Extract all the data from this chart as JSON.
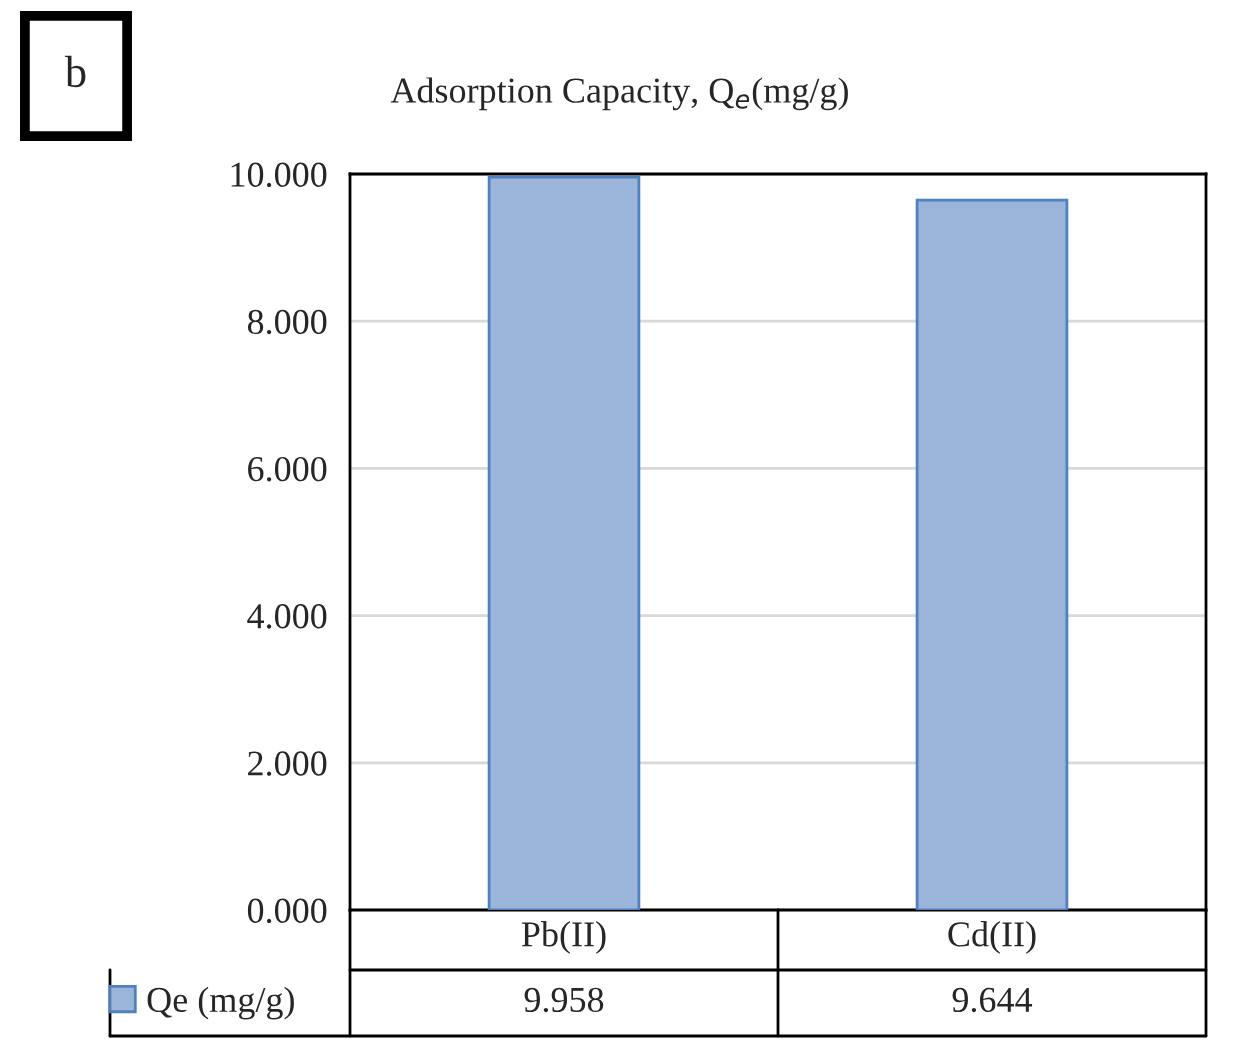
{
  "chart_data": {
    "type": "bar",
    "title": "Adsorption Capacity, Q$_{e}$(mg/g)",
    "annotations": [
      "b"
    ],
    "categories": [
      "Pb(II)",
      "Cd(II)"
    ],
    "series": [
      {
        "name": "Qe (mg/g)",
        "color": "#9bb5da",
        "values": [
          9.958,
          9.644
        ]
      }
    ],
    "ylim": [
      0,
      10
    ],
    "yticks": [
      {
        "value": 0,
        "label": "0.000"
      },
      {
        "value": 2,
        "label": "2.000"
      },
      {
        "value": 4,
        "label": "4.000"
      },
      {
        "value": 6,
        "label": "6.000"
      },
      {
        "value": 8,
        "label": "8.000"
      },
      {
        "value": 10,
        "label": "10.000"
      }
    ],
    "grid": "y",
    "legend": "bottom",
    "data_labels": true
  }
}
